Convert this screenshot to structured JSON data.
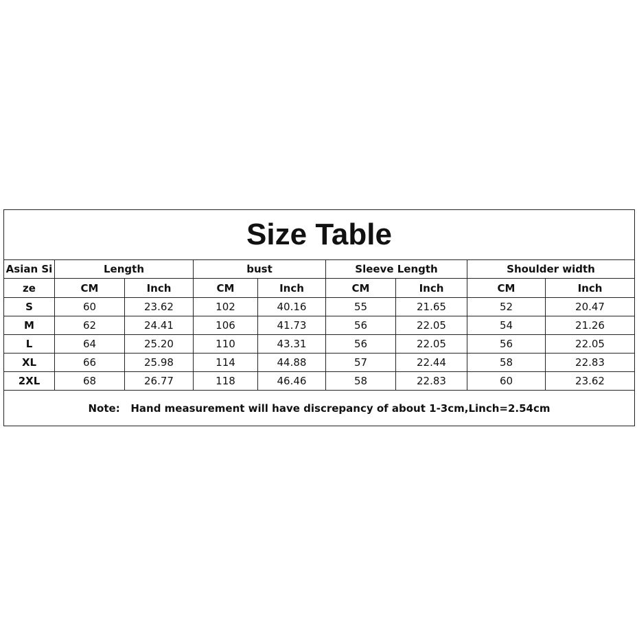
{
  "title": "Size Table",
  "size_header_line1": "Asian Si",
  "size_header_line2": "ze",
  "groups": [
    "Length",
    "bust",
    "Sleeve Length",
    "Shoulder width"
  ],
  "units": [
    "CM",
    "Inch",
    "CM",
    "Inch",
    "CM",
    "Inch",
    "CM",
    "Inch"
  ],
  "rows": [
    {
      "size": "S",
      "values": [
        "60",
        "23.62",
        "102",
        "40.16",
        "55",
        "21.65",
        "52",
        "20.47"
      ]
    },
    {
      "size": "M",
      "values": [
        "62",
        "24.41",
        "106",
        "41.73",
        "56",
        "22.05",
        "54",
        "21.26"
      ]
    },
    {
      "size": "L",
      "values": [
        "64",
        "25.20",
        "110",
        "43.31",
        "56",
        "22.05",
        "56",
        "22.05"
      ]
    },
    {
      "size": "XL",
      "values": [
        "66",
        "25.98",
        "114",
        "44.88",
        "57",
        "22.44",
        "58",
        "22.83"
      ]
    },
    {
      "size": "2XL",
      "values": [
        "68",
        "26.77",
        "118",
        "46.46",
        "58",
        "22.83",
        "60",
        "23.62"
      ]
    }
  ],
  "note": "Note:   Hand measurement will have discrepancy of about 1-3cm,Linch=2.54cm"
}
